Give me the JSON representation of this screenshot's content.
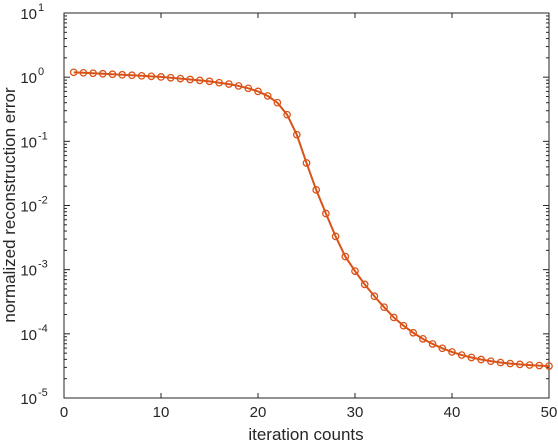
{
  "chart_data": {
    "type": "line",
    "xlabel": "iteration counts",
    "ylabel": "normalized reconstruction error",
    "xlim": [
      0,
      50
    ],
    "ylim": [
      1e-05,
      10
    ],
    "yscale": "log",
    "grid": false,
    "x_ticks": [
      "0",
      "10",
      "20",
      "30",
      "40",
      "50"
    ],
    "y_ticks": [
      {
        "base": "10",
        "exp": "-5"
      },
      {
        "base": "10",
        "exp": "-4"
      },
      {
        "base": "10",
        "exp": "-3"
      },
      {
        "base": "10",
        "exp": "-2"
      },
      {
        "base": "10",
        "exp": "-1"
      },
      {
        "base": "10",
        "exp": "0"
      },
      {
        "base": "10",
        "exp": "1"
      }
    ],
    "series_color": "#D95319",
    "x": [
      1,
      2,
      3,
      4,
      5,
      6,
      7,
      8,
      9,
      10,
      11,
      12,
      13,
      14,
      15,
      16,
      17,
      18,
      19,
      20,
      21,
      22,
      23,
      24,
      25,
      26,
      27,
      28,
      29,
      30,
      31,
      32,
      33,
      34,
      35,
      36,
      37,
      38,
      39,
      40,
      41,
      42,
      43,
      44,
      45,
      46,
      47,
      48,
      49,
      50
    ],
    "values": [
      1.19,
      1.17,
      1.15,
      1.13,
      1.11,
      1.09,
      1.07,
      1.05,
      1.03,
      1.01,
      0.98,
      0.95,
      0.92,
      0.89,
      0.86,
      0.82,
      0.78,
      0.73,
      0.67,
      0.6,
      0.51,
      0.4,
      0.26,
      0.127,
      0.046,
      0.0175,
      0.0075,
      0.0033,
      0.0016,
      0.00095,
      0.00059,
      0.000385,
      0.00026,
      0.00018,
      0.000134,
      0.000104,
      8.35e-05,
      6.95e-05,
      5.95e-05,
      5.22e-05,
      4.67e-05,
      4.28e-05,
      3.98e-05,
      3.75e-05,
      3.57e-05,
      3.44e-05,
      3.34e-05,
      3.26e-05,
      3.2e-05,
      3.14e-05
    ]
  }
}
